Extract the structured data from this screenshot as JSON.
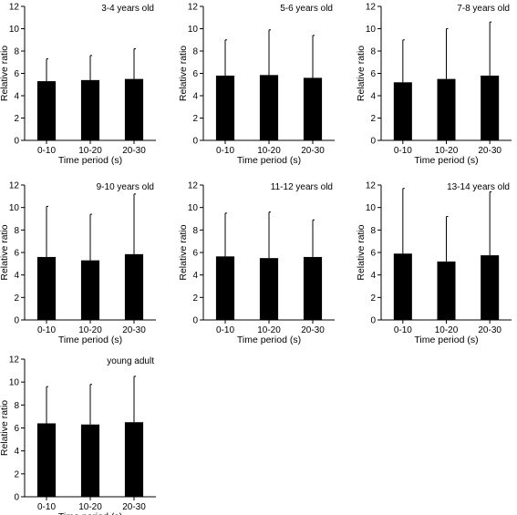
{
  "colors": {
    "bar": "#000000",
    "axis": "#000000",
    "background": "#ffffff"
  },
  "chart_data": [
    {
      "type": "bar",
      "title": "3-4 years old",
      "xlabel": "Time period (s)",
      "ylabel": "Relative ratio",
      "categories": [
        "0-10",
        "10-20",
        "20-30"
      ],
      "values": [
        5.3,
        5.4,
        5.5
      ],
      "error_upper": [
        7.3,
        7.6,
        8.2
      ],
      "ylim": [
        0,
        12
      ],
      "yticks": [
        0,
        2,
        4,
        6,
        8,
        10,
        12
      ],
      "grid": false
    },
    {
      "type": "bar",
      "title": "5-6 years old",
      "xlabel": "Time period (s)",
      "ylabel": "Relative ratio",
      "categories": [
        "0-10",
        "10-20",
        "20-30"
      ],
      "values": [
        5.8,
        5.85,
        5.6
      ],
      "error_upper": [
        9.0,
        9.9,
        9.4
      ],
      "ylim": [
        0,
        12
      ],
      "yticks": [
        0,
        2,
        4,
        6,
        8,
        10,
        12
      ],
      "grid": false
    },
    {
      "type": "bar",
      "title": "7-8 years old",
      "xlabel": "Time period (s)",
      "ylabel": "Relative ratio",
      "categories": [
        "0-10",
        "10-20",
        "20-30"
      ],
      "values": [
        5.2,
        5.5,
        5.8
      ],
      "error_upper": [
        9.0,
        10.0,
        10.6
      ],
      "ylim": [
        0,
        12
      ],
      "yticks": [
        0,
        2,
        4,
        6,
        8,
        10,
        12
      ],
      "grid": false
    },
    {
      "type": "bar",
      "title": "9-10 years old",
      "xlabel": "Time period (s)",
      "ylabel": "Relative ratio",
      "categories": [
        "0-10",
        "10-20",
        "20-30"
      ],
      "values": [
        5.6,
        5.3,
        5.85
      ],
      "error_upper": [
        10.1,
        9.4,
        11.2
      ],
      "ylim": [
        0,
        12
      ],
      "yticks": [
        0,
        2,
        4,
        6,
        8,
        10,
        12
      ],
      "grid": false
    },
    {
      "type": "bar",
      "title": "11-12 years old",
      "xlabel": "Time period (s)",
      "ylabel": "Relative ratio",
      "categories": [
        "0-10",
        "10-20",
        "20-30"
      ],
      "values": [
        5.65,
        5.5,
        5.6
      ],
      "error_upper": [
        9.5,
        9.6,
        8.9
      ],
      "ylim": [
        0,
        12
      ],
      "yticks": [
        0,
        2,
        4,
        6,
        8,
        10,
        12
      ],
      "grid": false
    },
    {
      "type": "bar",
      "title": "13-14 years old",
      "xlabel": "Time period (s)",
      "ylabel": "Relative ratio",
      "categories": [
        "0-10",
        "10-20",
        "20-30"
      ],
      "values": [
        5.9,
        5.2,
        5.75
      ],
      "error_upper": [
        11.7,
        9.2,
        11.4
      ],
      "ylim": [
        0,
        12
      ],
      "yticks": [
        0,
        2,
        4,
        6,
        8,
        10,
        12
      ],
      "grid": false
    },
    {
      "type": "bar",
      "title": "young adult",
      "xlabel": "Time period (s)",
      "ylabel": "Relative ratio",
      "categories": [
        "0-10",
        "10-20",
        "20-30"
      ],
      "values": [
        6.4,
        6.3,
        6.5
      ],
      "error_upper": [
        9.6,
        9.8,
        10.5
      ],
      "ylim": [
        0,
        12
      ],
      "yticks": [
        0,
        2,
        4,
        6,
        8,
        10,
        12
      ],
      "grid": false
    }
  ]
}
